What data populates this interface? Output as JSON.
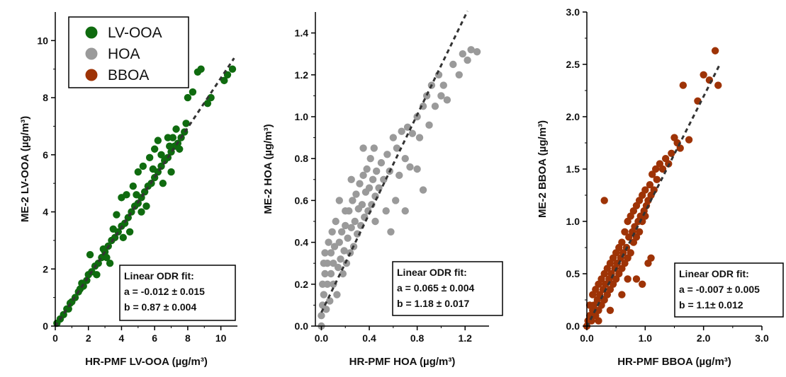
{
  "legend": [
    {
      "label": "LV-OOA",
      "color": "#0f6b0f"
    },
    {
      "label": "HOA",
      "color": "#9a9a9a"
    },
    {
      "label": "BBOA",
      "color": "#9e3306"
    }
  ],
  "chart_data": [
    {
      "type": "scatter",
      "color": "#0f6b0f",
      "xlabel": "HR-PMF LV-OOA (µg/m³)",
      "ylabel": "ME-2 LV-OOA (µg/m³)",
      "xlim": [
        0,
        11
      ],
      "ylim": [
        0,
        11
      ],
      "xticks": [
        0,
        2,
        4,
        6,
        8,
        10
      ],
      "yticks": [
        0,
        2,
        4,
        6,
        8,
        10
      ],
      "fit": {
        "title": "Linear ODR fit:",
        "a_text": "a = -0.012 ± 0.015",
        "b_text": "b = 0.87 ± 0.004",
        "a": -0.012,
        "b": 0.87
      },
      "fit_line_x": [
        0,
        10.8
      ],
      "points": [
        [
          0.1,
          0.1
        ],
        [
          0.3,
          0.25
        ],
        [
          0.5,
          0.4
        ],
        [
          0.7,
          0.6
        ],
        [
          0.9,
          0.8
        ],
        [
          1.0,
          0.85
        ],
        [
          1.2,
          1.0
        ],
        [
          1.4,
          1.2
        ],
        [
          1.5,
          1.3
        ],
        [
          1.7,
          1.4
        ],
        [
          1.9,
          1.6
        ],
        [
          2.0,
          1.8
        ],
        [
          2.2,
          1.9
        ],
        [
          2.4,
          2.1
        ],
        [
          2.6,
          2.2
        ],
        [
          2.8,
          2.4
        ],
        [
          3.0,
          2.6
        ],
        [
          3.2,
          2.8
        ],
        [
          3.4,
          3.0
        ],
        [
          3.6,
          3.1
        ],
        [
          3.8,
          3.3
        ],
        [
          4.0,
          3.5
        ],
        [
          4.2,
          3.6
        ],
        [
          4.4,
          3.8
        ],
        [
          4.6,
          4.0
        ],
        [
          4.8,
          4.2
        ],
        [
          5.0,
          4.3
        ],
        [
          5.2,
          4.5
        ],
        [
          5.4,
          4.7
        ],
        [
          5.6,
          4.9
        ],
        [
          5.8,
          5.0
        ],
        [
          6.0,
          5.2
        ],
        [
          6.2,
          5.4
        ],
        [
          6.4,
          5.6
        ],
        [
          6.6,
          5.8
        ],
        [
          6.8,
          5.9
        ],
        [
          7.0,
          6.1
        ],
        [
          7.2,
          6.3
        ],
        [
          7.4,
          6.4
        ],
        [
          7.6,
          6.6
        ],
        [
          7.8,
          6.8
        ],
        [
          2.1,
          2.5
        ],
        [
          2.5,
          1.8
        ],
        [
          3.3,
          2.2
        ],
        [
          4.0,
          4.5
        ],
        [
          4.5,
          3.3
        ],
        [
          5.0,
          5.4
        ],
        [
          5.5,
          4.2
        ],
        [
          6.0,
          6.2
        ],
        [
          6.5,
          5.0
        ],
        [
          7.0,
          5.4
        ],
        [
          3.7,
          3.9
        ],
        [
          4.3,
          4.6
        ],
        [
          4.7,
          4.9
        ],
        [
          5.3,
          5.6
        ],
        [
          5.7,
          5.9
        ],
        [
          6.2,
          6.5
        ],
        [
          6.8,
          6.6
        ],
        [
          5.2,
          4.0
        ],
        [
          4.1,
          3.1
        ],
        [
          3.1,
          2.4
        ],
        [
          1.6,
          1.5
        ],
        [
          0.8,
          0.6
        ],
        [
          2.9,
          2.7
        ],
        [
          3.5,
          3.4
        ],
        [
          4.9,
          4.6
        ],
        [
          5.9,
          5.5
        ],
        [
          6.4,
          6.0
        ],
        [
          7.3,
          6.9
        ],
        [
          7.5,
          6.2
        ],
        [
          7.9,
          7.1
        ],
        [
          8.0,
          8.0
        ],
        [
          8.3,
          8.2
        ],
        [
          8.6,
          8.9
        ],
        [
          8.8,
          9.0
        ],
        [
          9.2,
          7.8
        ],
        [
          9.4,
          8.0
        ],
        [
          10.2,
          8.6
        ],
        [
          10.4,
          8.8
        ],
        [
          10.7,
          9.0
        ],
        [
          7.1,
          6.6
        ],
        [
          6.9,
          6.3
        ]
      ]
    },
    {
      "type": "scatter",
      "color": "#9a9a9a",
      "xlabel": "HR-PMF HOA (µg/m³)",
      "ylabel": "ME-2 HOA (µg/m³)",
      "xlim": [
        -0.05,
        1.4
      ],
      "ylim": [
        0,
        1.5
      ],
      "xticks": [
        0.0,
        0.4,
        0.8,
        1.2
      ],
      "xtick_labels": [
        "0.0",
        "0.4",
        "0.8",
        "1.2"
      ],
      "yticks": [
        0.0,
        0.2,
        0.4,
        0.6,
        0.8,
        1.0,
        1.2,
        1.4
      ],
      "ytick_labels": [
        "0.0",
        "0.2",
        "0.4",
        "0.6",
        "0.8",
        "1.0",
        "1.2",
        "1.4"
      ],
      "fit": {
        "title": "Linear ODR fit:",
        "a_text": "a = 0.065 ± 0.004",
        "b_text": "b = 1.18 ± 0.017",
        "a": 0.065,
        "b": 1.18
      },
      "fit_line_x": [
        0,
        1.22
      ],
      "points": [
        [
          0.0,
          0.0
        ],
        [
          0.0,
          0.05
        ],
        [
          0.01,
          0.1
        ],
        [
          0.01,
          0.2
        ],
        [
          0.02,
          0.3
        ],
        [
          0.02,
          0.15
        ],
        [
          0.03,
          0.25
        ],
        [
          0.03,
          0.35
        ],
        [
          0.04,
          0.08
        ],
        [
          0.05,
          0.2
        ],
        [
          0.05,
          0.3
        ],
        [
          0.06,
          0.4
        ],
        [
          0.07,
          0.12
        ],
        [
          0.08,
          0.25
        ],
        [
          0.08,
          0.35
        ],
        [
          0.09,
          0.45
        ],
        [
          0.1,
          0.2
        ],
        [
          0.1,
          0.3
        ],
        [
          0.11,
          0.38
        ],
        [
          0.12,
          0.5
        ],
        [
          0.13,
          0.15
        ],
        [
          0.14,
          0.28
        ],
        [
          0.15,
          0.4
        ],
        [
          0.16,
          0.32
        ],
        [
          0.17,
          0.45
        ],
        [
          0.18,
          0.25
        ],
        [
          0.19,
          0.36
        ],
        [
          0.2,
          0.48
        ],
        [
          0.21,
          0.3
        ],
        [
          0.22,
          0.42
        ],
        [
          0.23,
          0.55
        ],
        [
          0.24,
          0.35
        ],
        [
          0.25,
          0.47
        ],
        [
          0.26,
          0.6
        ],
        [
          0.27,
          0.38
        ],
        [
          0.28,
          0.5
        ],
        [
          0.29,
          0.63
        ],
        [
          0.3,
          0.44
        ],
        [
          0.31,
          0.56
        ],
        [
          0.32,
          0.68
        ],
        [
          0.33,
          0.48
        ],
        [
          0.34,
          0.58
        ],
        [
          0.35,
          0.72
        ],
        [
          0.36,
          0.52
        ],
        [
          0.37,
          0.64
        ],
        [
          0.38,
          0.75
        ],
        [
          0.39,
          0.55
        ],
        [
          0.4,
          0.66
        ],
        [
          0.41,
          0.8
        ],
        [
          0.42,
          0.58
        ],
        [
          0.43,
          0.7
        ],
        [
          0.44,
          0.85
        ],
        [
          0.45,
          0.62
        ],
        [
          0.46,
          0.74
        ],
        [
          0.48,
          0.66
        ],
        [
          0.5,
          0.78
        ],
        [
          0.52,
          0.7
        ],
        [
          0.54,
          0.55
        ],
        [
          0.55,
          0.82
        ],
        [
          0.57,
          0.74
        ],
        [
          0.6,
          0.9
        ],
        [
          0.62,
          0.6
        ],
        [
          0.63,
          0.85
        ],
        [
          0.65,
          0.72
        ],
        [
          0.67,
          0.93
        ],
        [
          0.7,
          0.8
        ],
        [
          0.72,
          0.95
        ],
        [
          0.74,
          0.76
        ],
        [
          0.76,
          0.92
        ],
        [
          0.8,
          1.0
        ],
        [
          0.82,
          0.9
        ],
        [
          0.85,
          1.05
        ],
        [
          0.88,
          1.1
        ],
        [
          0.9,
          0.96
        ],
        [
          0.92,
          1.15
        ],
        [
          0.95,
          1.05
        ],
        [
          0.98,
          1.2
        ],
        [
          1.0,
          1.1
        ],
        [
          1.02,
          1.15
        ],
        [
          1.05,
          1.08
        ],
        [
          1.1,
          1.25
        ],
        [
          1.15,
          1.2
        ],
        [
          1.18,
          1.3
        ],
        [
          1.22,
          1.27
        ],
        [
          1.25,
          1.32
        ],
        [
          1.3,
          1.31
        ],
        [
          0.15,
          0.6
        ],
        [
          0.2,
          0.55
        ],
        [
          0.25,
          0.7
        ],
        [
          0.35,
          0.85
        ],
        [
          0.45,
          0.5
        ],
        [
          0.58,
          0.45
        ],
        [
          0.7,
          0.55
        ],
        [
          0.8,
          0.75
        ],
        [
          0.85,
          0.65
        ]
      ]
    },
    {
      "type": "scatter",
      "color": "#9e3306",
      "xlabel": "HR-PMF BBOA (µg/m³)",
      "ylabel": "ME-2 BBOA (µg/m³)",
      "xlim": [
        0,
        3.0
      ],
      "ylim": [
        0,
        3.0
      ],
      "xticks": [
        0.0,
        1.0,
        2.0,
        3.0
      ],
      "xtick_labels": [
        "0.0",
        "1.0",
        "2.0",
        "3.0"
      ],
      "yticks": [
        0.0,
        0.5,
        1.0,
        1.5,
        2.0,
        2.5,
        3.0
      ],
      "ytick_labels": [
        "0.0",
        "0.5",
        "1.0",
        "1.5",
        "2.0",
        "2.5",
        "3.0"
      ],
      "fit": {
        "title": "Linear ODR fit:",
        "a_text": "a = -0.007 ± 0.005",
        "b_text": "b = 1.1± 0.012",
        "a": -0.007,
        "b": 1.1
      },
      "fit_line_x": [
        0,
        2.27
      ],
      "points": [
        [
          0.0,
          0.0
        ],
        [
          0.02,
          0.05
        ],
        [
          0.05,
          0.1
        ],
        [
          0.05,
          0.2
        ],
        [
          0.08,
          0.05
        ],
        [
          0.1,
          0.15
        ],
        [
          0.1,
          0.3
        ],
        [
          0.12,
          0.2
        ],
        [
          0.15,
          0.1
        ],
        [
          0.15,
          0.35
        ],
        [
          0.18,
          0.25
        ],
        [
          0.2,
          0.15
        ],
        [
          0.2,
          0.4
        ],
        [
          0.22,
          0.3
        ],
        [
          0.25,
          0.2
        ],
        [
          0.25,
          0.45
        ],
        [
          0.28,
          0.35
        ],
        [
          0.3,
          0.25
        ],
        [
          0.3,
          0.5
        ],
        [
          0.32,
          0.4
        ],
        [
          0.35,
          0.3
        ],
        [
          0.35,
          0.55
        ],
        [
          0.38,
          0.45
        ],
        [
          0.4,
          0.35
        ],
        [
          0.4,
          0.6
        ],
        [
          0.42,
          0.5
        ],
        [
          0.45,
          0.4
        ],
        [
          0.45,
          0.65
        ],
        [
          0.48,
          0.55
        ],
        [
          0.5,
          0.45
        ],
        [
          0.5,
          0.7
        ],
        [
          0.52,
          0.6
        ],
        [
          0.55,
          0.5
        ],
        [
          0.55,
          0.75
        ],
        [
          0.58,
          0.65
        ],
        [
          0.6,
          0.55
        ],
        [
          0.6,
          0.8
        ],
        [
          0.62,
          0.7
        ],
        [
          0.65,
          0.6
        ],
        [
          0.65,
          0.9
        ],
        [
          0.68,
          0.75
        ],
        [
          0.7,
          0.65
        ],
        [
          0.7,
          1.0
        ],
        [
          0.72,
          0.85
        ],
        [
          0.75,
          0.7
        ],
        [
          0.75,
          1.05
        ],
        [
          0.78,
          0.9
        ],
        [
          0.8,
          0.8
        ],
        [
          0.8,
          1.1
        ],
        [
          0.82,
          0.95
        ],
        [
          0.85,
          0.85
        ],
        [
          0.85,
          1.15
        ],
        [
          0.88,
          1.0
        ],
        [
          0.9,
          0.9
        ],
        [
          0.9,
          1.2
        ],
        [
          0.92,
          1.05
        ],
        [
          0.95,
          1.0
        ],
        [
          0.95,
          1.25
        ],
        [
          0.98,
          1.1
        ],
        [
          1.0,
          1.05
        ],
        [
          1.0,
          1.3
        ],
        [
          1.02,
          1.15
        ],
        [
          1.05,
          1.2
        ],
        [
          1.08,
          1.35
        ],
        [
          1.1,
          1.25
        ],
        [
          1.12,
          1.45
        ],
        [
          1.15,
          1.3
        ],
        [
          1.18,
          1.5
        ],
        [
          1.2,
          1.4
        ],
        [
          1.25,
          1.55
        ],
        [
          1.3,
          1.5
        ],
        [
          1.35,
          1.6
        ],
        [
          1.4,
          1.55
        ],
        [
          1.45,
          1.65
        ],
        [
          1.5,
          1.8
        ],
        [
          1.55,
          1.75
        ],
        [
          1.6,
          1.7
        ],
        [
          1.65,
          2.3
        ],
        [
          1.75,
          1.78
        ],
        [
          1.9,
          2.15
        ],
        [
          2.0,
          2.4
        ],
        [
          2.1,
          2.35
        ],
        [
          2.2,
          2.63
        ],
        [
          2.25,
          2.3
        ],
        [
          0.3,
          1.2
        ],
        [
          0.85,
          0.45
        ],
        [
          0.95,
          0.4
        ],
        [
          1.05,
          0.6
        ],
        [
          1.1,
          0.65
        ],
        [
          0.6,
          0.3
        ],
        [
          0.4,
          0.15
        ],
        [
          0.2,
          0.05
        ],
        [
          0.7,
          0.45
        ]
      ]
    }
  ]
}
